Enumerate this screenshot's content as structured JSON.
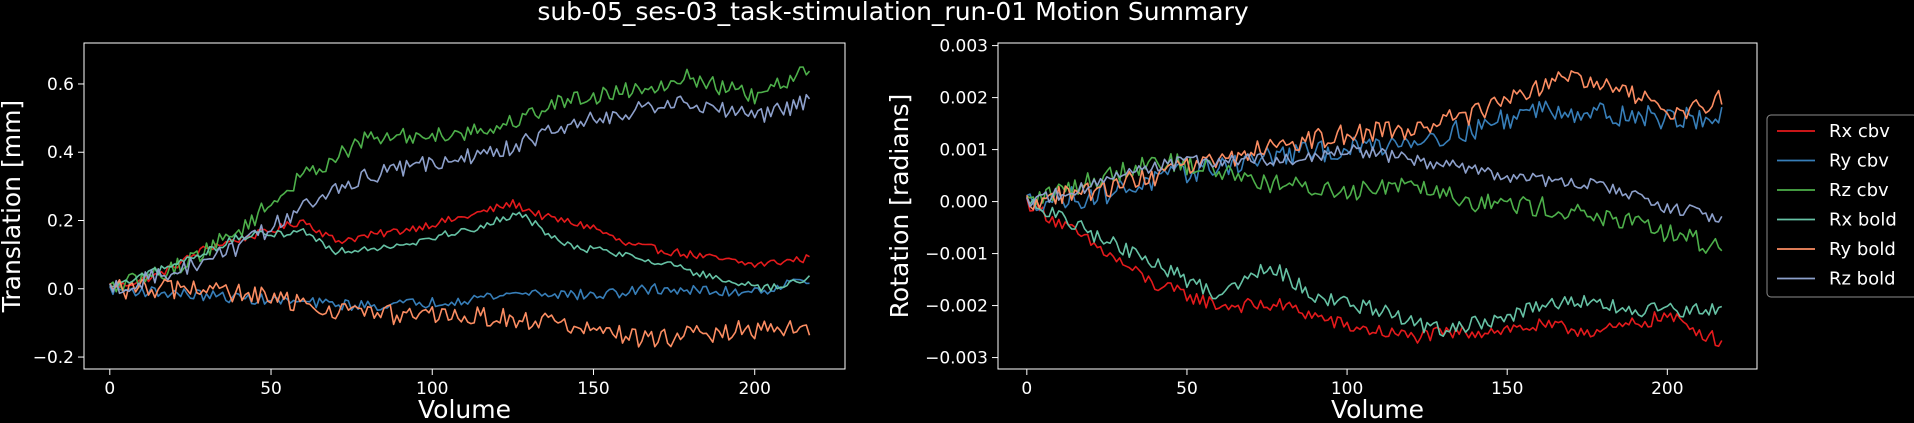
{
  "title": "sub-05_ses-03_task-stimulation_run-01 Motion Summary",
  "colors": {
    "background": "#000000",
    "axes": "#ffffff",
    "Rx cbv": "#e41a1c",
    "Ry cbv": "#377eb8",
    "Rz cbv": "#4daf4a",
    "Rx bold": "#66c2a5",
    "Ry bold": "#fc8d62",
    "Rz bold": "#8da0cb"
  },
  "legend": {
    "placement": "right",
    "entries": [
      "Rx cbv",
      "Ry cbv",
      "Rz cbv",
      "Rx bold",
      "Ry bold",
      "Rz bold"
    ]
  },
  "chart_data": [
    {
      "type": "line",
      "xlabel": "Volume",
      "ylabel": "Translation [mm]",
      "xlim": [
        -8,
        228
      ],
      "ylim": [
        -0.235,
        0.72
      ],
      "xticks": [
        0,
        50,
        100,
        150,
        200
      ],
      "yticks": [
        -0.2,
        0.0,
        0.2,
        0.4,
        0.6
      ],
      "ytick_labels": [
        "−0.2",
        "0.0",
        "0.2",
        "0.4",
        "0.6"
      ],
      "grid": false,
      "n_points": 218,
      "series": [
        {
          "name": "Rx cbv",
          "anchors": [
            [
              0,
              0.0
            ],
            [
              15,
              0.04
            ],
            [
              30,
              0.12
            ],
            [
              50,
              0.17
            ],
            [
              60,
              0.2
            ],
            [
              70,
              0.14
            ],
            [
              90,
              0.17
            ],
            [
              110,
              0.21
            ],
            [
              125,
              0.25
            ],
            [
              135,
              0.21
            ],
            [
              150,
              0.18
            ],
            [
              160,
              0.13
            ],
            [
              180,
              0.1
            ],
            [
              200,
              0.07
            ],
            [
              217,
              0.09
            ]
          ],
          "noise": 0.012
        },
        {
          "name": "Ry cbv",
          "anchors": [
            [
              0,
              0.0
            ],
            [
              30,
              -0.02
            ],
            [
              60,
              -0.04
            ],
            [
              80,
              -0.05
            ],
            [
              100,
              -0.04
            ],
            [
              130,
              -0.01
            ],
            [
              150,
              -0.02
            ],
            [
              170,
              0.0
            ],
            [
              190,
              -0.01
            ],
            [
              205,
              0.0
            ],
            [
              217,
              0.03
            ]
          ],
          "noise": 0.016
        },
        {
          "name": "Rz cbv",
          "anchors": [
            [
              0,
              0.0
            ],
            [
              20,
              0.06
            ],
            [
              40,
              0.17
            ],
            [
              60,
              0.33
            ],
            [
              80,
              0.44
            ],
            [
              100,
              0.45
            ],
            [
              120,
              0.47
            ],
            [
              140,
              0.55
            ],
            [
              160,
              0.58
            ],
            [
              180,
              0.62
            ],
            [
              200,
              0.56
            ],
            [
              217,
              0.64
            ]
          ],
          "noise": 0.025
        },
        {
          "name": "Rx bold",
          "anchors": [
            [
              0,
              0.0
            ],
            [
              20,
              0.07
            ],
            [
              40,
              0.15
            ],
            [
              60,
              0.17
            ],
            [
              70,
              0.11
            ],
            [
              90,
              0.13
            ],
            [
              110,
              0.17
            ],
            [
              128,
              0.22
            ],
            [
              140,
              0.13
            ],
            [
              160,
              0.1
            ],
            [
              175,
              0.07
            ],
            [
              190,
              0.02
            ],
            [
              205,
              0.0
            ],
            [
              217,
              0.03
            ]
          ],
          "noise": 0.012
        },
        {
          "name": "Ry bold",
          "anchors": [
            [
              0,
              0.0
            ],
            [
              30,
              0.0
            ],
            [
              50,
              -0.03
            ],
            [
              70,
              -0.06
            ],
            [
              90,
              -0.08
            ],
            [
              110,
              -0.08
            ],
            [
              130,
              -0.09
            ],
            [
              150,
              -0.12
            ],
            [
              165,
              -0.15
            ],
            [
              185,
              -0.13
            ],
            [
              200,
              -0.12
            ],
            [
              217,
              -0.12
            ]
          ],
          "noise": 0.03
        },
        {
          "name": "Rz bold",
          "anchors": [
            [
              0,
              0.0
            ],
            [
              20,
              0.05
            ],
            [
              40,
              0.12
            ],
            [
              60,
              0.24
            ],
            [
              80,
              0.33
            ],
            [
              100,
              0.37
            ],
            [
              120,
              0.4
            ],
            [
              140,
              0.47
            ],
            [
              160,
              0.52
            ],
            [
              180,
              0.55
            ],
            [
              200,
              0.5
            ],
            [
              217,
              0.55
            ]
          ],
          "noise": 0.025
        }
      ]
    },
    {
      "type": "line",
      "xlabel": "Volume",
      "ylabel": "Rotation [radians]",
      "xlim": [
        -9,
        228
      ],
      "ylim": [
        -0.00322,
        0.00305
      ],
      "xticks": [
        0,
        50,
        100,
        150,
        200
      ],
      "yticks": [
        -0.003,
        -0.002,
        -0.001,
        0.0,
        0.001,
        0.002,
        0.003
      ],
      "ytick_labels": [
        "−0.003",
        "−0.002",
        "−0.001",
        "0.000",
        "0.001",
        "0.002",
        "0.003"
      ],
      "grid": false,
      "n_points": 218,
      "series": [
        {
          "name": "Rx cbv",
          "anchors": [
            [
              0,
              0.0
            ],
            [
              20,
              -0.0008
            ],
            [
              40,
              -0.0016
            ],
            [
              60,
              -0.002
            ],
            [
              80,
              -0.002
            ],
            [
              100,
              -0.0024
            ],
            [
              120,
              -0.0026
            ],
            [
              140,
              -0.0025
            ],
            [
              160,
              -0.0024
            ],
            [
              180,
              -0.0025
            ],
            [
              200,
              -0.0022
            ],
            [
              217,
              -0.0027
            ]
          ],
          "noise": 0.00014
        },
        {
          "name": "Ry cbv",
          "anchors": [
            [
              0,
              0.0
            ],
            [
              20,
              0.0001
            ],
            [
              40,
              0.0004
            ],
            [
              60,
              0.0007
            ],
            [
              80,
              0.0009
            ],
            [
              100,
              0.001
            ],
            [
              120,
              0.0012
            ],
            [
              140,
              0.0014
            ],
            [
              160,
              0.0018
            ],
            [
              180,
              0.0017
            ],
            [
              200,
              0.0016
            ],
            [
              217,
              0.0016
            ]
          ],
          "noise": 0.00022
        },
        {
          "name": "Rz cbv",
          "anchors": [
            [
              0,
              0.0
            ],
            [
              20,
              0.0004
            ],
            [
              40,
              0.0008
            ],
            [
              60,
              0.0006
            ],
            [
              80,
              0.0003
            ],
            [
              100,
              0.0002
            ],
            [
              120,
              0.0004
            ],
            [
              140,
              0.0
            ],
            [
              160,
              -0.0001
            ],
            [
              180,
              -0.0003
            ],
            [
              200,
              -0.0006
            ],
            [
              217,
              -0.0009
            ]
          ],
          "noise": 0.0002
        },
        {
          "name": "Rx bold",
          "anchors": [
            [
              0,
              0.0
            ],
            [
              20,
              -0.0006
            ],
            [
              40,
              -0.0012
            ],
            [
              60,
              -0.0018
            ],
            [
              75,
              -0.0012
            ],
            [
              90,
              -0.0018
            ],
            [
              110,
              -0.0021
            ],
            [
              130,
              -0.0025
            ],
            [
              150,
              -0.0022
            ],
            [
              170,
              -0.0019
            ],
            [
              190,
              -0.0021
            ],
            [
              217,
              -0.0021
            ]
          ],
          "noise": 0.00015
        },
        {
          "name": "Ry bold",
          "anchors": [
            [
              0,
              0.0
            ],
            [
              20,
              0.0002
            ],
            [
              40,
              0.0005
            ],
            [
              60,
              0.0008
            ],
            [
              80,
              0.0011
            ],
            [
              100,
              0.0013
            ],
            [
              120,
              0.0014
            ],
            [
              140,
              0.0017
            ],
            [
              160,
              0.0022
            ],
            [
              170,
              0.0024
            ],
            [
              190,
              0.002
            ],
            [
              205,
              0.0017
            ],
            [
              217,
              0.002
            ]
          ],
          "noise": 0.0002
        },
        {
          "name": "Rz bold",
          "anchors": [
            [
              0,
              0.0
            ],
            [
              20,
              0.0003
            ],
            [
              40,
              0.0007
            ],
            [
              60,
              0.0008
            ],
            [
              80,
              0.0008
            ],
            [
              100,
              0.001
            ],
            [
              120,
              0.0008
            ],
            [
              140,
              0.0006
            ],
            [
              160,
              0.0004
            ],
            [
              180,
              0.0003
            ],
            [
              200,
              -0.0001
            ],
            [
              217,
              -0.0003
            ]
          ],
          "noise": 0.00013
        }
      ]
    }
  ]
}
